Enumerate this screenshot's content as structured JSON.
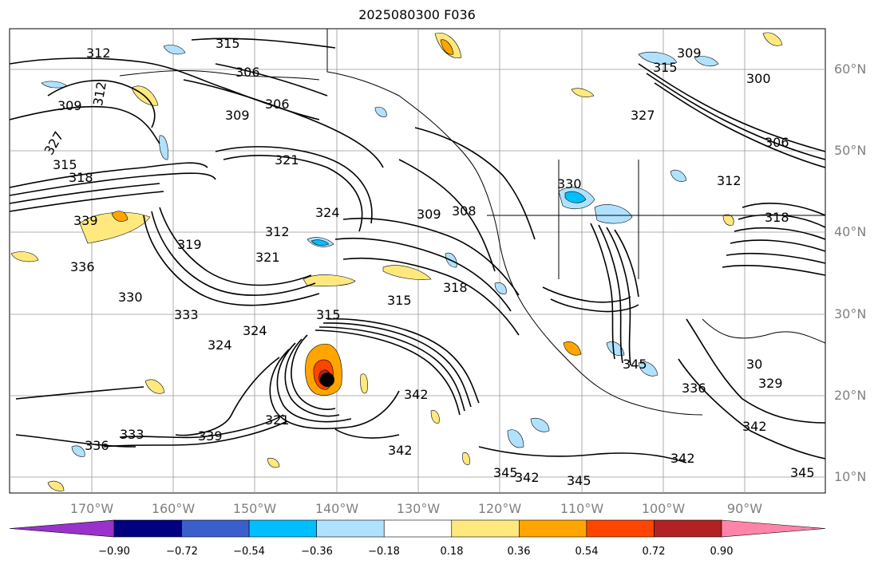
{
  "title": "2025080300 F036",
  "lat_labels": [
    "60°N",
    "50°N",
    "40°N",
    "30°N",
    "20°N",
    "10°N"
  ],
  "lon_labels": [
    "170°W",
    "160°W",
    "150°W",
    "140°W",
    "130°W",
    "120°W",
    "110°W",
    "100°W",
    "90°W"
  ],
  "colorbar": {
    "ticks": [
      "−0.90",
      "−0.72",
      "−0.54",
      "−0.36",
      "−0.18",
      "0.18",
      "0.36",
      "0.54",
      "0.72",
      "0.90"
    ],
    "colors": [
      "#9932cc",
      "#000080",
      "#3a5fcd",
      "#00bfff",
      "#b0e2ff",
      "#ffffff",
      "#ffe97f",
      "#ffa500",
      "#ff4500",
      "#b22222",
      "#ff85a8"
    ]
  },
  "contour_labels": [
    "315",
    "312",
    "306",
    "309",
    "312",
    "306",
    "309",
    "327",
    "315",
    "318",
    "321",
    "312",
    "324",
    "319",
    "339",
    "336",
    "330",
    "333",
    "324",
    "321",
    "315",
    "315",
    "318",
    "309",
    "308",
    "330",
    "318",
    "327",
    "312",
    "309",
    "300",
    "306",
    "315",
    "324",
    "342",
    "339",
    "336",
    "333",
    "321",
    "342",
    "345",
    "342",
    "345",
    "345",
    "342",
    "336",
    "329",
    "342",
    "345",
    "30"
  ],
  "storm_marker": "storm-center"
}
